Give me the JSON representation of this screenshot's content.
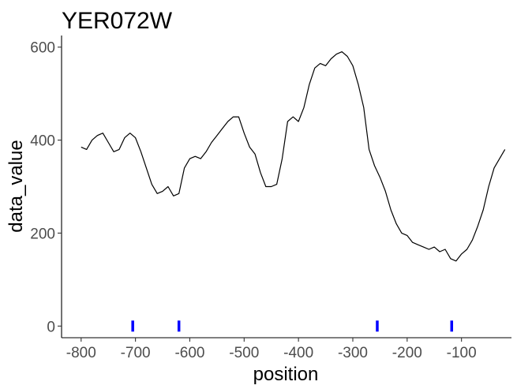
{
  "chart_data": {
    "type": "line",
    "title": "YER072W",
    "xlabel": "position",
    "ylabel": "data_value",
    "xlim": [
      -836,
      -8
    ],
    "ylim": [
      -25,
      625
    ],
    "x_ticks": [
      -800,
      -700,
      -600,
      -500,
      -400,
      -300,
      -200,
      -100
    ],
    "x_tick_labels": [
      "-800",
      "-700",
      "-600",
      "-500",
      "-400",
      "-300",
      "-200",
      "-100"
    ],
    "y_ticks": [
      0,
      200,
      400,
      600
    ],
    "y_tick_labels": [
      "0",
      "200",
      "400",
      "600"
    ],
    "grid": false,
    "series": [
      {
        "color": "#000000",
        "x": [
          -800,
          -790,
          -780,
          -770,
          -760,
          -750,
          -740,
          -730,
          -720,
          -710,
          -700,
          -690,
          -680,
          -670,
          -660,
          -650,
          -640,
          -630,
          -620,
          -610,
          -600,
          -590,
          -580,
          -570,
          -560,
          -550,
          -540,
          -530,
          -520,
          -510,
          -500,
          -490,
          -480,
          -470,
          -460,
          -450,
          -440,
          -430,
          -420,
          -410,
          -400,
          -390,
          -380,
          -370,
          -360,
          -350,
          -340,
          -330,
          -320,
          -310,
          -300,
          -290,
          -280,
          -270,
          -260,
          -250,
          -240,
          -230,
          -220,
          -210,
          -200,
          -190,
          -180,
          -170,
          -160,
          -150,
          -140,
          -130,
          -120,
          -110,
          -100,
          -90,
          -80,
          -70,
          -60,
          -50,
          -40,
          -30,
          -20
        ],
        "values": [
          385,
          380,
          400,
          410,
          415,
          395,
          375,
          380,
          405,
          415,
          405,
          375,
          340,
          305,
          285,
          290,
          300,
          280,
          285,
          340,
          360,
          365,
          360,
          375,
          395,
          410,
          425,
          440,
          450,
          450,
          415,
          385,
          370,
          330,
          300,
          300,
          305,
          360,
          440,
          450,
          440,
          470,
          520,
          555,
          565,
          560,
          575,
          585,
          590,
          580,
          560,
          520,
          470,
          380,
          345,
          320,
          290,
          250,
          220,
          200,
          195,
          180,
          175,
          170,
          165,
          170,
          160,
          165,
          145,
          140,
          155,
          165,
          185,
          215,
          250,
          300,
          340,
          360,
          380
        ]
      }
    ],
    "markers": {
      "color": "#0000ff",
      "x": [
        -705,
        -620,
        -255,
        -118
      ],
      "value": 0
    }
  }
}
